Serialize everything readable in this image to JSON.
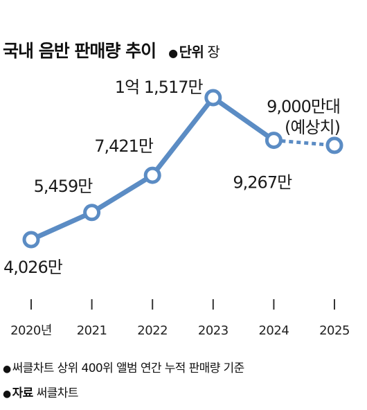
{
  "title": "국내 음반 판매량 추이",
  "unit": {
    "label": "단위",
    "value": "장"
  },
  "footnote": "써클차트 상위 400위 앨범 연간 누적 판매량 기준",
  "source": {
    "label": "자료",
    "value": "써클차트"
  },
  "colors": {
    "line": "#5b8cc4",
    "point_fill": "#ffffff",
    "axis_tick": "#333333"
  },
  "chart_data": {
    "type": "line",
    "categories": [
      "2020년",
      "2021",
      "2022",
      "2023",
      "2024",
      "2025"
    ],
    "values": [
      40260000,
      54590000,
      74210000,
      115170000,
      92670000,
      90000000
    ],
    "value_labels": [
      "4,026만",
      "5,459만",
      "7,421만",
      "1억 1,517만",
      "9,267만",
      "9,000만대\n(예상치)"
    ],
    "projected_from_index": 4,
    "series": [
      {
        "values": [
          40260000,
          54590000,
          74210000,
          115170000,
          92670000,
          90000000
        ]
      }
    ],
    "title": "국내 음반 판매량 추이",
    "xlabel": "",
    "ylabel": "",
    "grid": false
  }
}
